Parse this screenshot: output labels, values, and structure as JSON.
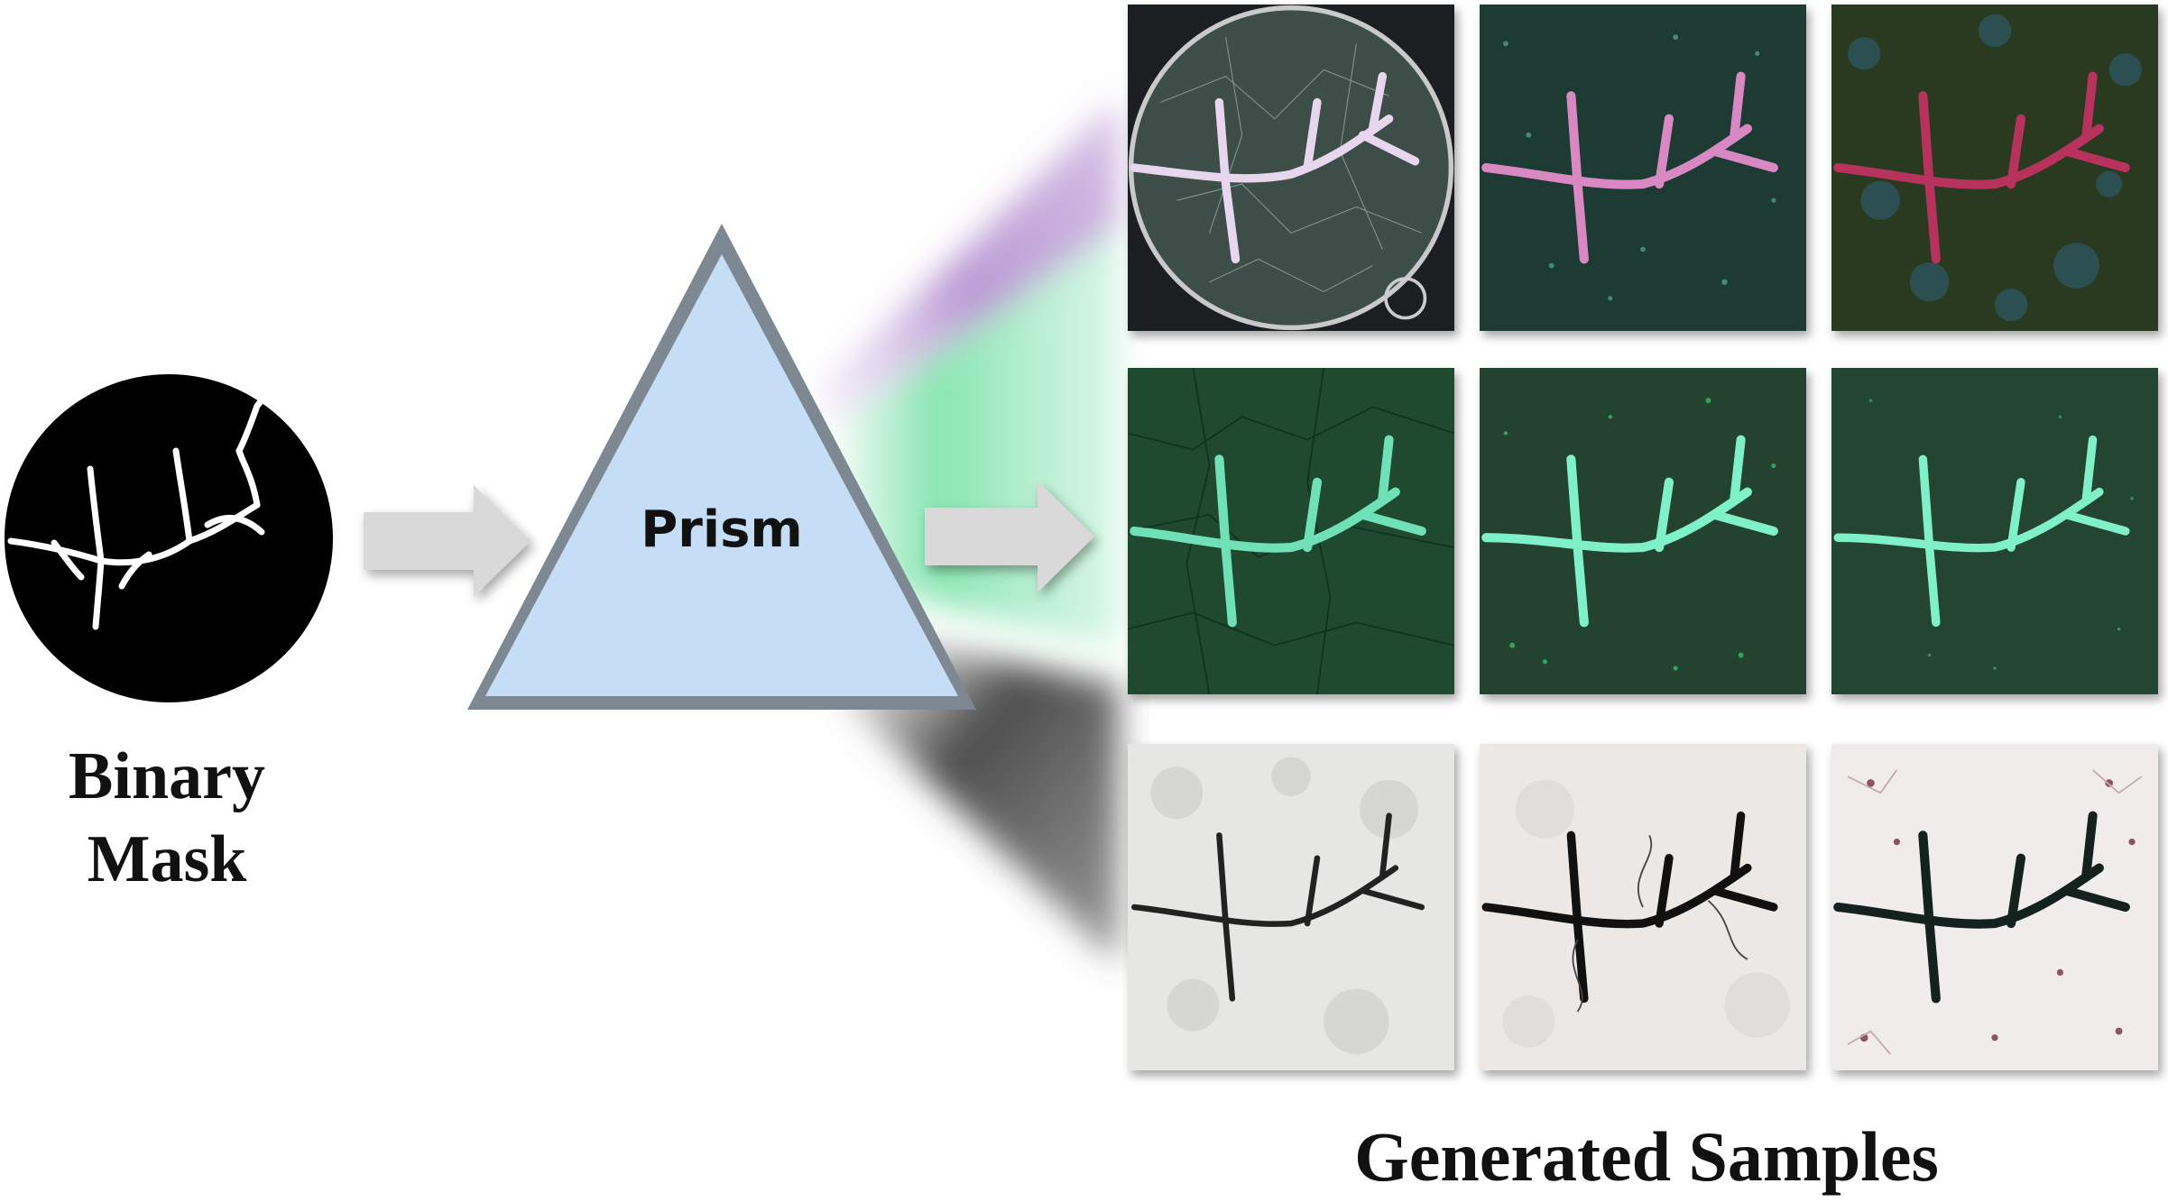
{
  "labels": {
    "mask_caption_line1": "Binary",
    "mask_caption_line2": "Mask",
    "prism_label": "Prism",
    "samples_caption": "Generated Samples"
  },
  "colors": {
    "prism_fill": "#c6def5",
    "prism_border": "#7d8893",
    "arrow": "#d9d9d9",
    "beam_purple": "#b48fd0",
    "beam_green": "#6fe0a2",
    "beam_gray": "#5a5a5a"
  },
  "samples": [
    {
      "row": 1,
      "col": 1,
      "style": "petri-dish-pink"
    },
    {
      "row": 1,
      "col": 2,
      "style": "dark-green-pink"
    },
    {
      "row": 1,
      "col": 3,
      "style": "dark-olive-magenta"
    },
    {
      "row": 2,
      "col": 1,
      "style": "green-textured-mint"
    },
    {
      "row": 2,
      "col": 2,
      "style": "green-speckled-mint"
    },
    {
      "row": 2,
      "col": 3,
      "style": "green-fine-mint"
    },
    {
      "row": 3,
      "col": 1,
      "style": "light-gray-black"
    },
    {
      "row": 3,
      "col": 2,
      "style": "light-gray-outlined"
    },
    {
      "row": 3,
      "col": 3,
      "style": "white-dotted-black"
    }
  ]
}
